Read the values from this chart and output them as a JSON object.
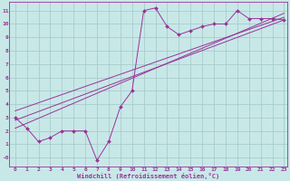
{
  "xlabel": "Windchill (Refroidissement éolien,°C)",
  "background_color": "#c8e8e8",
  "grid_color": "#a8cccc",
  "line_color": "#993399",
  "xlim": [
    -0.5,
    23.3
  ],
  "ylim": [
    -0.65,
    11.65
  ],
  "xticks": [
    0,
    1,
    2,
    3,
    4,
    5,
    6,
    7,
    8,
    9,
    10,
    11,
    12,
    13,
    14,
    15,
    16,
    17,
    18,
    19,
    20,
    21,
    22,
    23
  ],
  "yticks": [
    0,
    1,
    2,
    3,
    4,
    5,
    6,
    7,
    8,
    9,
    10,
    11
  ],
  "ytick_labels": [
    "-0",
    "1",
    "2",
    "3",
    "4",
    "5",
    "6",
    "7",
    "8",
    "9",
    "10",
    "11"
  ],
  "curve1_x": [
    0,
    1,
    2,
    3,
    4,
    5,
    6,
    7,
    8,
    9,
    10,
    11,
    12,
    13,
    14,
    15,
    16,
    17,
    18,
    19,
    20,
    21,
    22,
    23
  ],
  "curve1_y": [
    3.0,
    2.2,
    1.2,
    1.5,
    2.0,
    2.0,
    2.0,
    -0.2,
    1.2,
    3.8,
    5.0,
    11.0,
    11.2,
    9.8,
    9.2,
    9.5,
    9.8,
    10.0,
    10.0,
    11.0,
    10.4,
    10.4,
    10.4,
    10.3
  ],
  "line1_x": [
    0,
    23
  ],
  "line1_y": [
    2.8,
    10.3
  ],
  "line2_x": [
    0,
    23
  ],
  "line2_y": [
    3.5,
    10.5
  ],
  "line3_x": [
    0,
    23
  ],
  "line3_y": [
    2.2,
    10.8
  ]
}
